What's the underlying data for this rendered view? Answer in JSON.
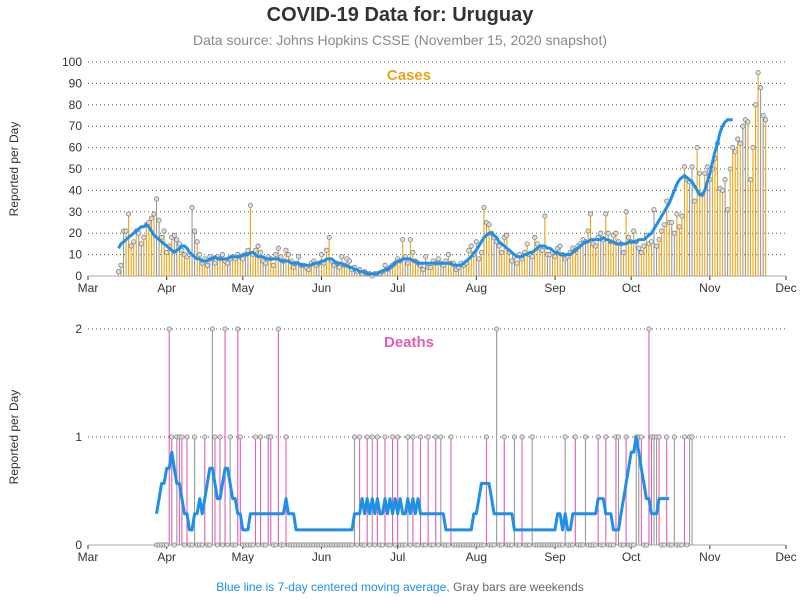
{
  "title": "COVID-19 Data for: Uruguay",
  "subtitle": "Data source: Johns Hopkins CSSE (November 15, 2020 snapshot)",
  "footnote": {
    "blue_part": "Blue line is 7-day centered moving average,",
    "gray_part": " Gray bars are weekends"
  },
  "colors": {
    "cases_bar": "#e8a317",
    "deaths_bar": "#e05fb0",
    "weekend_bar": "#999999",
    "moving_average": "#1f8fe8",
    "grid": "#555555"
  },
  "chart_data": [
    {
      "type": "bar",
      "panel_label": "Cases",
      "ylabel": "Reported per Day",
      "ylim": [
        0,
        100
      ],
      "yticks": [
        0,
        10,
        20,
        30,
        40,
        50,
        60,
        70,
        80,
        90,
        100
      ],
      "xlim": [
        "2020-03-01",
        "2020-12-01"
      ],
      "x_tick_labels": [
        "Mar",
        "Apr",
        "May",
        "Jun",
        "Jul",
        "Aug",
        "Sep",
        "Oct",
        "Nov",
        "Dec"
      ],
      "grid": "horizontal dotted",
      "start_date": "2020-03-13",
      "daily_values": [
        2,
        5,
        21,
        21,
        29,
        14,
        16,
        21,
        20,
        15,
        18,
        24,
        25,
        27,
        29,
        36,
        26,
        18,
        21,
        11,
        14,
        18,
        19,
        17,
        15,
        12,
        10,
        9,
        10,
        32,
        21,
        16,
        10,
        6,
        8,
        5,
        9,
        8,
        6,
        9,
        8,
        10,
        7,
        6,
        8,
        9,
        8,
        10,
        9,
        8,
        10,
        12,
        33,
        10,
        12,
        14,
        11,
        7,
        6,
        9,
        8,
        5,
        10,
        13,
        9,
        7,
        12,
        10,
        7,
        4,
        6,
        9,
        5,
        5,
        4,
        3,
        6,
        7,
        5,
        6,
        10,
        6,
        12,
        18,
        7,
        5,
        6,
        4,
        9,
        5,
        8,
        7,
        3,
        4,
        2,
        3,
        1,
        2,
        1,
        1,
        0,
        1,
        1,
        1,
        2,
        5,
        3,
        4,
        5,
        6,
        8,
        7,
        17,
        9,
        6,
        17,
        11,
        7,
        6,
        5,
        3,
        9,
        4,
        4,
        7,
        6,
        8,
        6,
        5,
        7,
        10,
        6,
        6,
        3,
        4,
        6,
        5,
        6,
        12,
        14,
        10,
        16,
        8,
        11,
        32,
        25,
        24,
        20,
        18,
        16,
        14,
        11,
        18,
        19,
        11,
        7,
        9,
        6,
        10,
        8,
        11,
        15,
        10,
        9,
        18,
        15,
        13,
        12,
        28,
        10,
        10,
        11,
        9,
        13,
        14,
        10,
        8,
        9,
        11,
        13,
        12,
        14,
        15,
        17,
        16,
        21,
        29,
        15,
        14,
        18,
        20,
        17,
        29,
        20,
        16,
        19,
        20,
        16,
        15,
        11,
        30,
        18,
        16,
        21,
        16,
        13,
        11,
        14,
        19,
        15,
        16,
        31,
        14,
        17,
        21,
        24,
        35,
        25,
        25,
        20,
        29,
        23,
        28,
        51,
        45,
        44,
        51,
        35,
        60,
        48,
        38,
        48,
        51,
        45,
        50,
        55,
        62,
        41,
        40,
        45,
        31,
        50,
        60,
        58,
        64,
        62,
        70,
        73,
        72,
        45,
        60,
        80,
        95,
        88,
        75,
        73
      ],
      "moving_average_approx": [
        13,
        15,
        16,
        17,
        18,
        19,
        20,
        21,
        22,
        23,
        23,
        24,
        23,
        21,
        19,
        18,
        17,
        16,
        15,
        14,
        13,
        12,
        11,
        12,
        13,
        14,
        14,
        13,
        11,
        10,
        9,
        8,
        8,
        7,
        7,
        7,
        8,
        8,
        9,
        8,
        8,
        8,
        8,
        8,
        9,
        9,
        9,
        9,
        9,
        10,
        10,
        10,
        11,
        11,
        10,
        9,
        9,
        9,
        8,
        8,
        8,
        8,
        8,
        8,
        7,
        7,
        7,
        7,
        6,
        6,
        6,
        6,
        5,
        5,
        5,
        5,
        5,
        6,
        6,
        6,
        7,
        7,
        8,
        8,
        8,
        7,
        6,
        6,
        6,
        5,
        5,
        4,
        4,
        3,
        3,
        2,
        2,
        2,
        1,
        1,
        1,
        1,
        1,
        2,
        2,
        3,
        3,
        4,
        5,
        6,
        7,
        7,
        8,
        8,
        8,
        8,
        7,
        7,
        6,
        6,
        6,
        6,
        6,
        6,
        6,
        6,
        6,
        6,
        6,
        6,
        6,
        6,
        5,
        5,
        5,
        5,
        6,
        7,
        8,
        9,
        11,
        12,
        14,
        16,
        18,
        19,
        20,
        20,
        19,
        18,
        16,
        15,
        14,
        13,
        12,
        11,
        10,
        9,
        9,
        9,
        10,
        10,
        11,
        11,
        12,
        13,
        14,
        14,
        14,
        13,
        13,
        12,
        11,
        11,
        10,
        10,
        10,
        10,
        10,
        11,
        12,
        13,
        14,
        15,
        16,
        16,
        17,
        17,
        17,
        17,
        17,
        18,
        17,
        17,
        16,
        16,
        15,
        15,
        15,
        15,
        15,
        16,
        16,
        16,
        16,
        17,
        17,
        17,
        18,
        19,
        20,
        22,
        24,
        26,
        28,
        30,
        32,
        34,
        37,
        40,
        43,
        45,
        46,
        47,
        46,
        45,
        44,
        42,
        40,
        38,
        38,
        40,
        44,
        48,
        53,
        58,
        62,
        67,
        70,
        72,
        73,
        73,
        73
      ]
    },
    {
      "type": "bar",
      "panel_label": "Deaths",
      "ylabel": "Reported per Day",
      "ylim": [
        0,
        2
      ],
      "yticks": [
        0,
        1,
        2
      ],
      "xlim": [
        "2020-03-01",
        "2020-12-01"
      ],
      "x_tick_labels": [
        "Mar",
        "Apr",
        "May",
        "Jun",
        "Jul",
        "Aug",
        "Sep",
        "Oct",
        "Nov",
        "Dec"
      ],
      "grid": "horizontal dotted",
      "start_date": "2020-03-28",
      "daily_values": [
        0,
        0,
        0,
        0,
        0,
        2,
        1,
        0,
        1,
        1,
        1,
        0,
        1,
        0,
        0,
        1,
        0,
        0,
        0,
        1,
        0,
        0,
        2,
        1,
        0,
        1,
        0,
        2,
        0,
        1,
        0,
        0,
        2,
        1,
        0,
        0,
        0,
        0,
        0,
        1,
        0,
        1,
        0,
        0,
        1,
        1,
        0,
        0,
        2,
        0,
        0,
        1,
        0,
        0,
        0,
        0,
        0,
        0,
        0,
        0,
        0,
        0,
        0,
        0,
        0,
        0,
        0,
        0,
        0,
        0,
        0,
        0,
        0,
        0,
        0,
        0,
        0,
        0,
        1,
        0,
        1,
        0,
        0,
        1,
        0,
        1,
        0,
        1,
        0,
        0,
        1,
        0,
        0,
        1,
        0,
        1,
        0,
        0,
        0,
        1,
        0,
        1,
        0,
        0,
        1,
        0,
        0,
        1,
        0,
        0,
        1,
        0,
        1,
        0,
        0,
        0,
        1,
        0,
        0,
        0,
        0,
        0,
        0,
        0,
        0,
        0,
        0,
        0,
        0,
        0,
        1,
        0,
        0,
        0,
        2,
        0,
        0,
        1,
        0,
        0,
        0,
        1,
        0,
        0,
        1,
        0,
        0,
        0,
        1,
        0,
        0,
        0,
        0,
        0,
        0,
        0,
        0,
        0,
        0,
        0,
        0,
        1,
        0,
        0,
        0,
        1,
        0,
        0,
        0,
        1,
        0,
        0,
        0,
        0,
        1,
        0,
        0,
        1,
        0,
        0,
        0,
        1,
        1,
        0,
        0,
        1,
        0,
        0,
        0,
        1,
        1,
        1,
        0,
        0,
        2,
        1,
        1,
        1,
        1,
        0,
        0,
        1,
        0,
        0,
        1,
        0,
        0,
        0,
        1,
        0,
        1,
        1
      ],
      "moving_average_approx": [
        0.29,
        0.43,
        0.57,
        0.57,
        0.71,
        0.71,
        0.86,
        0.71,
        0.57,
        0.57,
        0.43,
        0.29,
        0.29,
        0.14,
        0.14,
        0.29,
        0.29,
        0.43,
        0.29,
        0.43,
        0.57,
        0.71,
        0.71,
        0.57,
        0.43,
        0.43,
        0.57,
        0.71,
        0.71,
        0.57,
        0.43,
        0.43,
        0.29,
        0.29,
        0.14,
        0.14,
        0.14,
        0.29,
        0.29,
        0.29,
        0.29,
        0.29,
        0.29,
        0.29,
        0.29,
        0.29,
        0.29,
        0.29,
        0.29,
        0.29,
        0.29,
        0.43,
        0.29,
        0.29,
        0.29,
        0.14,
        0.14,
        0.14,
        0.14,
        0.14,
        0.14,
        0.14,
        0.14,
        0.14,
        0.14,
        0.14,
        0.14,
        0.14,
        0.14,
        0.14,
        0.14,
        0.14,
        0.14,
        0.14,
        0.14,
        0.14,
        0.14,
        0.14,
        0.29,
        0.29,
        0.29,
        0.43,
        0.29,
        0.43,
        0.29,
        0.43,
        0.29,
        0.43,
        0.29,
        0.29,
        0.43,
        0.29,
        0.43,
        0.29,
        0.43,
        0.29,
        0.43,
        0.29,
        0.29,
        0.43,
        0.29,
        0.43,
        0.29,
        0.43,
        0.29,
        0.29,
        0.29,
        0.29,
        0.29,
        0.29,
        0.29,
        0.29,
        0.29,
        0.29,
        0.14,
        0.14,
        0.14,
        0.14,
        0.14,
        0.14,
        0.14,
        0.14,
        0.14,
        0.14,
        0.14,
        0.29,
        0.29,
        0.43,
        0.57,
        0.57,
        0.57,
        0.57,
        0.43,
        0.29,
        0.29,
        0.29,
        0.29,
        0.29,
        0.29,
        0.29,
        0.29,
        0.14,
        0.14,
        0.14,
        0.14,
        0.14,
        0.14,
        0.14,
        0.14,
        0.14,
        0.14,
        0.14,
        0.14,
        0.14,
        0.14,
        0.14,
        0.14,
        0.14,
        0.29,
        0.29,
        0.14,
        0.29,
        0.14,
        0.14,
        0.29,
        0.29,
        0.29,
        0.29,
        0.29,
        0.29,
        0.29,
        0.29,
        0.29,
        0.29,
        0.43,
        0.43,
        0.43,
        0.29,
        0.29,
        0.29,
        0.14,
        0.14,
        0.14,
        0.29,
        0.43,
        0.57,
        0.71,
        0.86,
        0.86,
        1.0,
        0.86,
        0.71,
        0.57,
        0.43,
        0.43,
        0.29,
        0.29,
        0.29,
        0.43,
        0.43,
        0.43,
        0.43,
        0.43
      ]
    }
  ]
}
